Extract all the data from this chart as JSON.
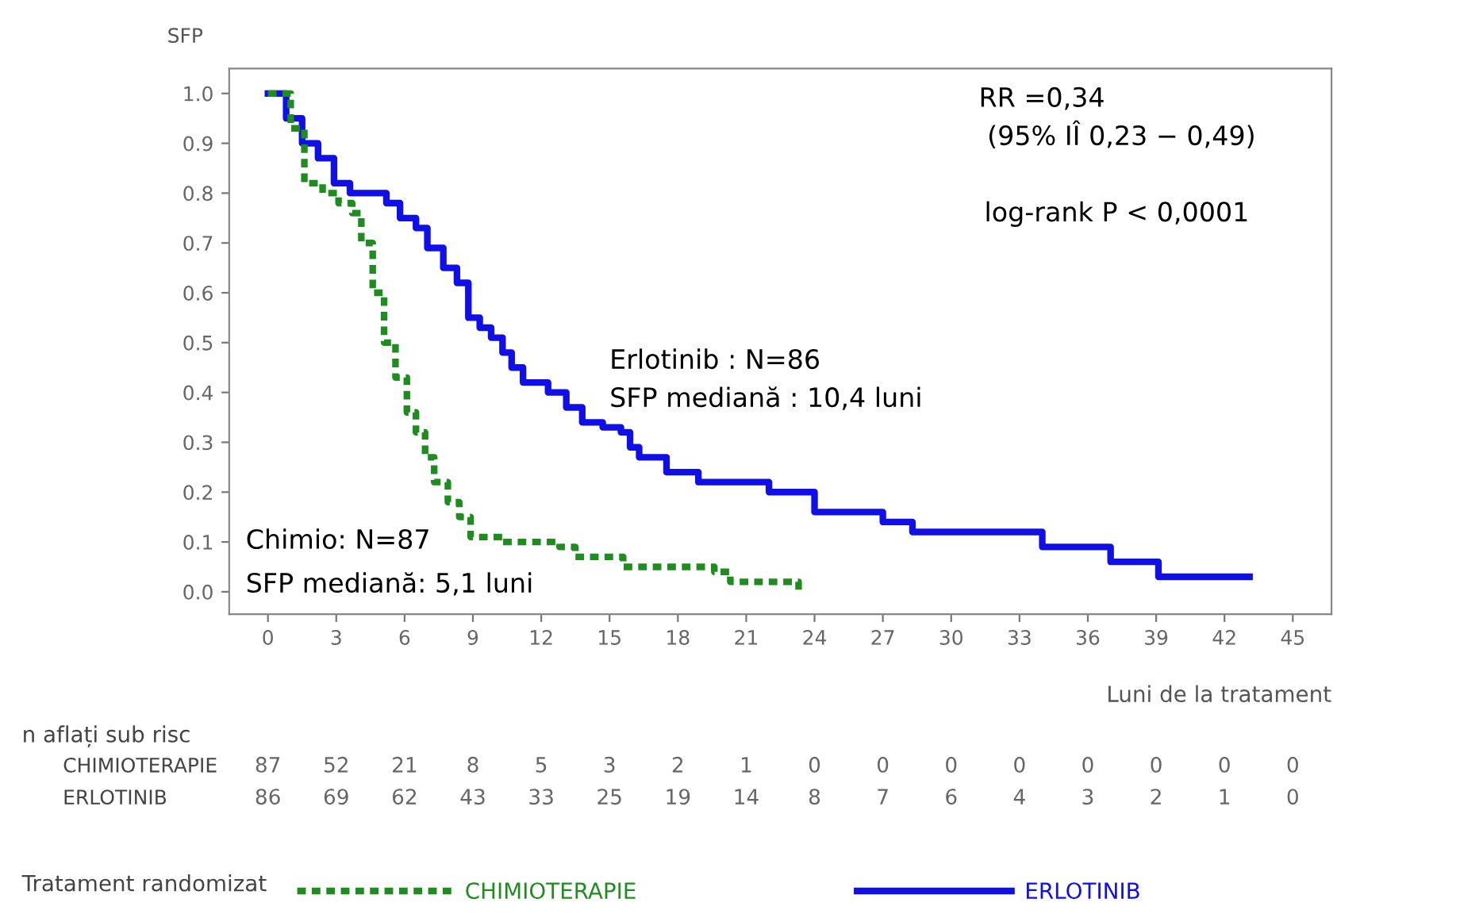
{
  "chart_data": {
    "type": "step",
    "ylabel": "SFP",
    "xlabel": "Luni de la tratament",
    "legend_title": "Tratament randomizat",
    "legend": "bottom",
    "grid": false,
    "xlim": [
      -1.7,
      46.7
    ],
    "ylim": [
      -0.045,
      1.05
    ],
    "xticks": [
      0,
      3,
      6,
      9,
      12,
      15,
      18,
      21,
      24,
      27,
      30,
      33,
      36,
      39,
      42,
      45
    ],
    "yticks": [
      {
        "value": 0,
        "label": "0.0"
      },
      {
        "value": 0.1,
        "label": "0.1"
      },
      {
        "value": 0.2,
        "label": "0.2"
      },
      {
        "value": 0.3,
        "label": "0.3"
      },
      {
        "value": 0.4,
        "label": "0.4"
      },
      {
        "value": 0.5,
        "label": "0.5"
      },
      {
        "value": 0.6,
        "label": "0.6"
      },
      {
        "value": 0.7,
        "label": "0.7"
      },
      {
        "value": 0.8,
        "label": "0.8"
      },
      {
        "value": 0.9,
        "label": "0.9"
      },
      {
        "value": 1,
        "label": "1.0"
      }
    ],
    "series": [
      {
        "name": "CHIMIOTERAPIE",
        "color": "#1e8c1e",
        "line_style": "dashed",
        "x": [
          0,
          1.0,
          1.6,
          2.4,
          3.1,
          3.7,
          4.1,
          4.6,
          5.1,
          5.6,
          6.1,
          6.5,
          6.9,
          7.3,
          7.9,
          8.4,
          8.9,
          10.3,
          12.8,
          13.5,
          15.6,
          19.6,
          20.3,
          23.3
        ],
        "values": [
          1.0,
          0.93,
          0.82,
          0.8,
          0.78,
          0.76,
          0.7,
          0.6,
          0.5,
          0.43,
          0.36,
          0.32,
          0.27,
          0.22,
          0.18,
          0.15,
          0.11,
          0.1,
          0.09,
          0.07,
          0.05,
          0.04,
          0.02,
          0.0
        ]
      },
      {
        "name": "ERLOTINIB",
        "color": "#1010e6",
        "line_style": "solid",
        "x": [
          0,
          0.8,
          1.5,
          2.2,
          2.9,
          3.6,
          5.2,
          5.8,
          6.5,
          7.0,
          7.7,
          8.3,
          8.8,
          9.3,
          9.8,
          10.3,
          10.7,
          11.2,
          12.3,
          13.1,
          13.8,
          14.7,
          15.5,
          15.9,
          16.3,
          17.5,
          18.9,
          22.0,
          24.0,
          27.0,
          28.3,
          34.0,
          37.0,
          39.1,
          43.1
        ],
        "values": [
          1.0,
          0.95,
          0.9,
          0.87,
          0.82,
          0.8,
          0.78,
          0.75,
          0.73,
          0.69,
          0.65,
          0.62,
          0.55,
          0.53,
          0.51,
          0.48,
          0.45,
          0.42,
          0.4,
          0.37,
          0.34,
          0.33,
          0.32,
          0.29,
          0.27,
          0.24,
          0.22,
          0.2,
          0.16,
          0.14,
          0.12,
          0.09,
          0.06,
          0.03,
          0.03
        ]
      }
    ],
    "annotations": [
      "RR =0,34",
      " (95% IÎ 0,23 − 0,49)",
      "log-rank P < 0,0001",
      "Erlotinib : N=86",
      "SFP mediană : 10,4 luni",
      "Chimio: N=87",
      "SFP mediană: 5,1 luni",
      "n aflați sub risc",
      "CHIMIOTERAPIE 87 52 21 8 5 3 2 1 0 0 0 0 0 0 0 0",
      "ERLOTINIB 86 69 62 43 33 25 19 14 8 7 6 4 3 2 1 0"
    ]
  }
}
